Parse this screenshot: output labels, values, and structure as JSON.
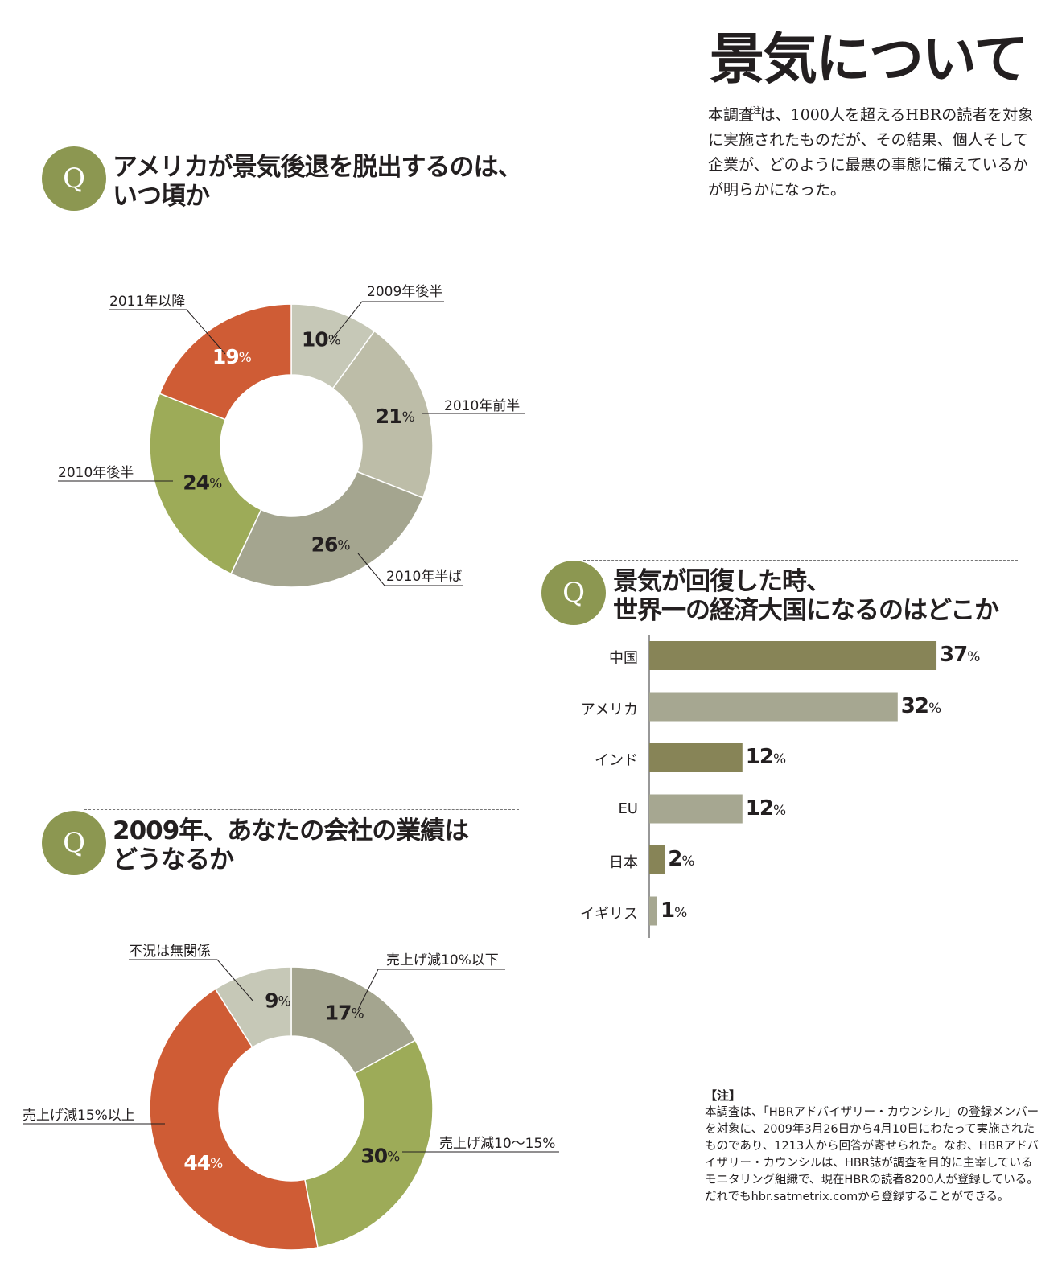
{
  "page": {
    "title": "景気について",
    "intro_before": "本調査",
    "intro_mark": "(注)",
    "intro_after": "は、1000人を超えるHBRの読者を対象に実施されたものだが、その結果、個人そして企業が、どのように最悪の事態に備えているかが明らかになった。"
  },
  "q_badge": "Q",
  "questions": [
    {
      "line1": "アメリカが景気後退を脱出するのは、",
      "line2": "いつ頃か"
    },
    {
      "line1": "景気が回復した時、",
      "line2": "世界一の経済大国になるのはどこか"
    },
    {
      "line1": "2009年、あなたの会社の業績は",
      "line2": "どうなるか"
    }
  ],
  "percent_sign": "%",
  "chart_data": [
    {
      "type": "pie",
      "donut": true,
      "labels": [
        "2009年後半",
        "2010年前半",
        "2010年半ば",
        "2010年後半",
        "2011年以降"
      ],
      "values": [
        10,
        21,
        26,
        24,
        19
      ],
      "colors": [
        "#c6c8b7",
        "#bdbda8",
        "#a4a58f",
        "#9dab58",
        "#cf5c35"
      ]
    },
    {
      "type": "bar",
      "orientation": "horizontal",
      "categories": [
        "中国",
        "アメリカ",
        "インド",
        "EU",
        "日本",
        "イギリス"
      ],
      "values": [
        37,
        32,
        12,
        12,
        2,
        1
      ],
      "colors": [
        "#878457",
        "#a6a791",
        "#878457",
        "#a6a791",
        "#878457",
        "#a6a791"
      ]
    },
    {
      "type": "pie",
      "donut": true,
      "labels": [
        "売上げ減10%以下",
        "売上げ減10〜15%",
        "売上げ減15%以上",
        "不況は無関係"
      ],
      "values": [
        17,
        30,
        44,
        9
      ],
      "colors": [
        "#a4a58f",
        "#9dab58",
        "#cf5c35",
        "#c6c8b7"
      ]
    }
  ],
  "note": {
    "title": "【注】",
    "text": "本調査は、「HBRアドバイザリー・カウンシル」の登録メンバーを対象に、2009年3月26日から4月10日にわたって実施されたものであり、1213人から回答が寄せられた。なお、HBRアドバイザリー・カウンシルは、HBR誌が調査を目的に主宰しているモニタリング組織で、現在HBRの読者8200人が登録している。だれでもhbr.satmetrix.comから登録することができる。"
  }
}
